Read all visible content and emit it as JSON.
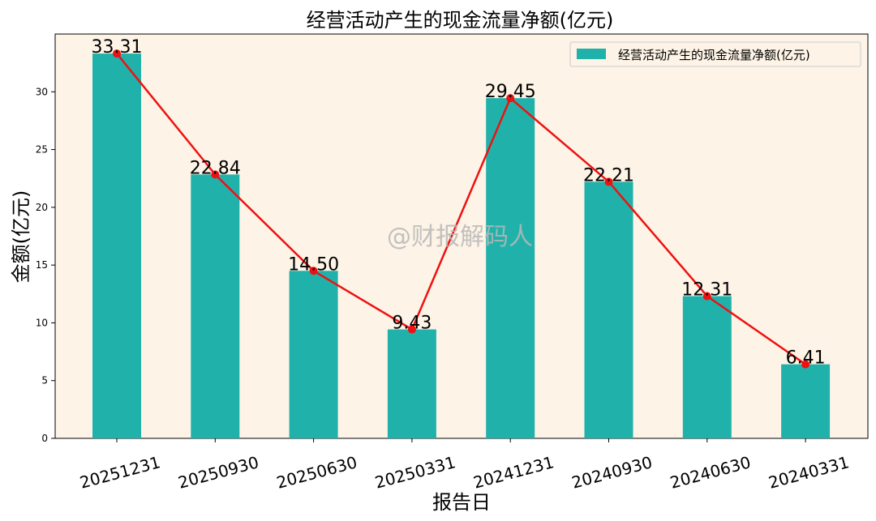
{
  "chart_data": {
    "type": "bar",
    "title": "经营活动产生的现金流量净额(亿元)",
    "xlabel": "报告日",
    "ylabel": "金额(亿元)",
    "categories": [
      "20251231",
      "20250930",
      "20250630",
      "20250331",
      "20241231",
      "20240930",
      "20240630",
      "20240331"
    ],
    "series": [
      {
        "name": "经营活动产生的现金流量净额(亿元)",
        "values": [
          33.31,
          22.84,
          14.5,
          9.43,
          29.45,
          22.21,
          12.31,
          6.41
        ],
        "labels": [
          "33.31",
          "22.84",
          "14.50",
          "9.43",
          "29.45",
          "22.21",
          "12.31",
          "6.41"
        ],
        "color": "#20b2aa"
      }
    ],
    "line_overlay": {
      "color": "#ee1111",
      "marker": "circle"
    },
    "ylim": [
      0,
      35
    ],
    "yticks": [
      0,
      5,
      10,
      15,
      20,
      25,
      30
    ],
    "grid": false,
    "legend": "top-right",
    "background": "#fdf3e6",
    "watermark": "@财报解码人"
  }
}
